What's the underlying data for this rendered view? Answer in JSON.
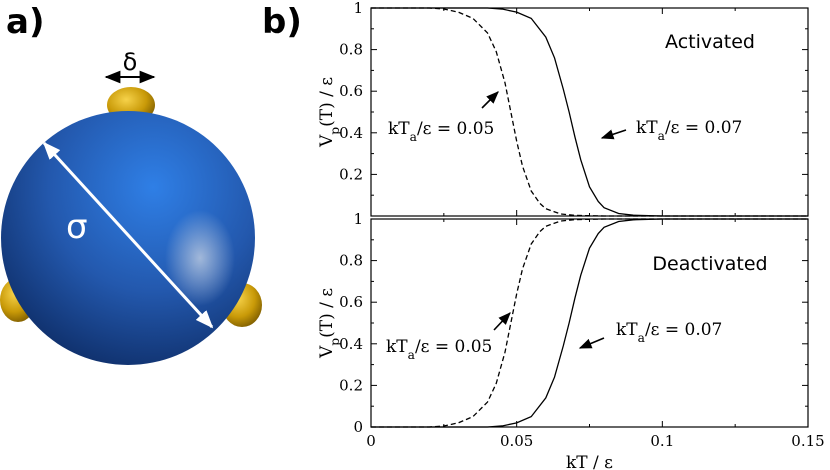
{
  "panel_a": {
    "label": "a)",
    "delta_symbol": "δ",
    "sigma_symbol": "σ",
    "colors": {
      "sphere": "#2f64b8",
      "patch": "#d4a20a",
      "arrow": "#ffffff"
    },
    "icon": "patchy-particle-illustration"
  },
  "panel_b": {
    "label": "b)"
  },
  "chart_data": [
    {
      "type": "line",
      "panel": "Activated",
      "state_label": "Activated",
      "ylabel": "V_p(T) / ε",
      "xlim": [
        0,
        0.15
      ],
      "ylim": [
        0,
        1
      ],
      "xticks": [
        0,
        0.05,
        0.1,
        0.15
      ],
      "xtick_labels": [
        "0",
        "0.05",
        "0.1",
        "0.15"
      ],
      "yticks": [
        0.2,
        0.4,
        0.6,
        0.8,
        1
      ],
      "ytick_labels": [
        "0.2",
        "0.4",
        "0.6",
        "0.8",
        "1"
      ],
      "series": [
        {
          "style": "dashed",
          "annotation": {
            "prefix": "kT",
            "sub": "a",
            "suffix": "/ε = 0.05"
          },
          "x": [
            0,
            0.02,
            0.025,
            0.03,
            0.035,
            0.04,
            0.043,
            0.046,
            0.048,
            0.05,
            0.052,
            0.055,
            0.058,
            0.06,
            0.065,
            0.07,
            0.08,
            0.09,
            0.1,
            0.15
          ],
          "y": [
            1,
            1,
            0.995,
            0.98,
            0.95,
            0.88,
            0.79,
            0.64,
            0.5,
            0.36,
            0.24,
            0.12,
            0.06,
            0.035,
            0.01,
            0.003,
            0,
            0,
            0,
            0
          ]
        },
        {
          "style": "solid",
          "annotation": {
            "prefix": "kT",
            "sub": "a",
            "suffix": "/ε = 0.07"
          },
          "x": [
            0,
            0.04,
            0.045,
            0.05,
            0.055,
            0.06,
            0.063,
            0.066,
            0.068,
            0.07,
            0.072,
            0.075,
            0.078,
            0.08,
            0.085,
            0.09,
            0.1,
            0.15
          ],
          "y": [
            1,
            1,
            0.995,
            0.98,
            0.95,
            0.86,
            0.76,
            0.61,
            0.5,
            0.38,
            0.27,
            0.14,
            0.07,
            0.04,
            0.012,
            0.004,
            0,
            0
          ]
        }
      ]
    },
    {
      "type": "line",
      "panel": "Deactivated",
      "state_label": "Deactivated",
      "xlabel": "kT / ε",
      "ylabel": "V_p(T) / ε",
      "xlim": [
        0,
        0.15
      ],
      "ylim": [
        0,
        1
      ],
      "xticks": [
        0,
        0.05,
        0.1,
        0.15
      ],
      "xtick_labels": [
        "0",
        "0.05",
        "0.1",
        "0.15"
      ],
      "yticks": [
        0,
        0.2,
        0.4,
        0.6,
        0.8,
        1
      ],
      "ytick_labels": [
        "0",
        "0.2",
        "0.4",
        "0.6",
        "0.8",
        "1"
      ],
      "series": [
        {
          "style": "dashed",
          "annotation": {
            "prefix": "kT",
            "sub": "a",
            "suffix": "/ε = 0.05"
          },
          "x": [
            0,
            0.02,
            0.025,
            0.03,
            0.035,
            0.04,
            0.043,
            0.046,
            0.048,
            0.05,
            0.052,
            0.055,
            0.058,
            0.06,
            0.065,
            0.07,
            0.08,
            0.09,
            0.1,
            0.15
          ],
          "y": [
            0,
            0,
            0.005,
            0.02,
            0.05,
            0.12,
            0.21,
            0.36,
            0.5,
            0.64,
            0.76,
            0.88,
            0.94,
            0.965,
            0.99,
            0.997,
            1,
            1,
            1,
            1
          ]
        },
        {
          "style": "solid",
          "annotation": {
            "prefix": "kT",
            "sub": "a",
            "suffix": "/ε = 0.07"
          },
          "x": [
            0,
            0.04,
            0.045,
            0.05,
            0.055,
            0.06,
            0.063,
            0.066,
            0.068,
            0.07,
            0.072,
            0.075,
            0.078,
            0.08,
            0.085,
            0.09,
            0.1,
            0.15
          ],
          "y": [
            0,
            0,
            0.005,
            0.02,
            0.05,
            0.14,
            0.24,
            0.39,
            0.5,
            0.62,
            0.73,
            0.86,
            0.93,
            0.96,
            0.988,
            0.996,
            1,
            1
          ]
        }
      ]
    }
  ]
}
